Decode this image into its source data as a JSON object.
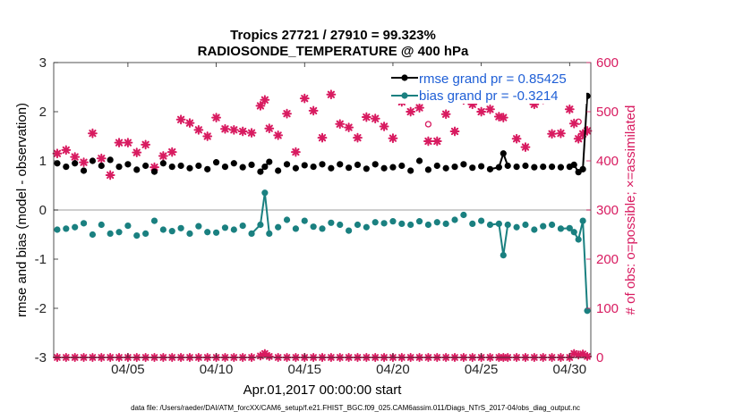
{
  "chart_data": {
    "type": "line",
    "title": "Tropics 27721 / 27910 = 99.323%",
    "subtitle": "RADIOSONDE_TEMPERATURE @ 400 hPa",
    "xlabel": "Apr.01,2017 00:00:00 start",
    "ylabel": "rmse and bias (model - observation)",
    "ylabel_right": "# of obs: o=possible; ×=assimilated",
    "footer": "data file: /Users/raeder/DAI/ATM_forcXX/CAM6_setup/f.e21.FHIST_BGC.f09_025.CAM6assim.011/Diags_NTrS_2017-04/obs_diag_output.nc",
    "xlim": [
      0.8,
      31.2
    ],
    "ylim": [
      -3,
      3
    ],
    "ylim_right": [
      0,
      600
    ],
    "x_ticks": [
      5,
      10,
      15,
      20,
      25,
      30
    ],
    "x_tick_labels": [
      "04/05",
      "04/10",
      "04/15",
      "04/20",
      "04/25",
      "04/30"
    ],
    "y_ticks": [
      -3,
      -2,
      -1,
      0,
      1,
      2,
      3
    ],
    "y_tick_labels": [
      "-3",
      "-2",
      "-1",
      "0",
      "1",
      "2",
      "3"
    ],
    "y_ticks_right": [
      0,
      100,
      200,
      300,
      400,
      500,
      600
    ],
    "y_tick_labels_right": [
      "0",
      "100",
      "200",
      "300",
      "400",
      "500",
      "600"
    ],
    "colors": {
      "rmse": "#000000",
      "bias": "#1a8080",
      "obs": "#d81b60",
      "legend_text": "#1f5fd6",
      "zero_line": "#bdbdbd"
    },
    "legend": [
      "rmse grand pr = 0.85425",
      "bias grand pr = -0.3214"
    ],
    "series": [
      {
        "name": "rmse",
        "x": [
          1.0,
          1.5,
          2.0,
          2.5,
          3.0,
          3.5,
          4.0,
          4.5,
          5.0,
          5.5,
          6.0,
          6.5,
          7.0,
          7.5,
          8.0,
          8.5,
          9.0,
          9.5,
          10.0,
          10.5,
          11.0,
          11.5,
          12.0,
          12.5,
          12.75,
          13.0,
          13.5,
          14.0,
          14.5,
          15.0,
          15.5,
          16.0,
          16.5,
          17.0,
          17.5,
          18.0,
          18.5,
          19.0,
          19.5,
          20.0,
          20.5,
          21.0,
          21.5,
          22.0,
          22.5,
          23.0,
          23.5,
          24.0,
          24.5,
          25.0,
          25.5,
          26.0,
          26.25,
          26.5,
          27.0,
          27.5,
          28.0,
          28.5,
          29.0,
          29.5,
          30.0,
          30.25,
          30.5,
          30.75,
          31.0
        ],
        "values": [
          0.95,
          0.88,
          0.95,
          0.8,
          1.0,
          0.9,
          1.02,
          0.88,
          0.93,
          0.82,
          0.9,
          0.78,
          0.95,
          0.88,
          0.9,
          0.85,
          0.9,
          0.83,
          0.97,
          0.88,
          0.95,
          0.87,
          0.92,
          0.78,
          0.88,
          0.98,
          0.8,
          0.93,
          0.85,
          0.91,
          0.88,
          0.93,
          0.85,
          0.93,
          0.86,
          0.92,
          0.84,
          0.93,
          0.85,
          0.87,
          0.9,
          0.8,
          1.0,
          0.82,
          0.9,
          0.85,
          0.88,
          0.93,
          0.86,
          0.89,
          0.83,
          0.87,
          1.15,
          0.9,
          0.88,
          0.9,
          0.87,
          0.88,
          0.88,
          0.87,
          0.88,
          0.92,
          0.77,
          0.83,
          2.32
        ]
      },
      {
        "name": "bias",
        "x": [
          1.0,
          1.5,
          2.0,
          2.5,
          3.0,
          3.5,
          4.0,
          4.5,
          5.0,
          5.5,
          6.0,
          6.5,
          7.0,
          7.5,
          8.0,
          8.5,
          9.0,
          9.5,
          10.0,
          10.5,
          11.0,
          11.5,
          12.0,
          12.5,
          12.75,
          13.0,
          13.5,
          14.0,
          14.5,
          15.0,
          15.5,
          16.0,
          16.5,
          17.0,
          17.5,
          18.0,
          18.5,
          19.0,
          19.5,
          20.0,
          20.5,
          21.0,
          21.5,
          22.0,
          22.5,
          23.0,
          23.5,
          24.0,
          24.5,
          25.0,
          25.5,
          26.0,
          26.25,
          26.5,
          27.0,
          27.5,
          28.0,
          28.5,
          29.0,
          29.5,
          30.0,
          30.25,
          30.5,
          30.75,
          31.0
        ],
        "values": [
          -0.4,
          -0.38,
          -0.35,
          -0.27,
          -0.5,
          -0.3,
          -0.48,
          -0.45,
          -0.32,
          -0.52,
          -0.48,
          -0.22,
          -0.4,
          -0.43,
          -0.37,
          -0.48,
          -0.33,
          -0.45,
          -0.46,
          -0.36,
          -0.4,
          -0.32,
          -0.48,
          -0.3,
          0.35,
          -0.48,
          -0.35,
          -0.2,
          -0.38,
          -0.22,
          -0.34,
          -0.38,
          -0.26,
          -0.3,
          -0.42,
          -0.3,
          -0.35,
          -0.25,
          -0.27,
          -0.23,
          -0.28,
          -0.3,
          -0.23,
          -0.3,
          -0.25,
          -0.28,
          -0.2,
          -0.1,
          -0.28,
          -0.22,
          -0.3,
          -0.28,
          -0.92,
          -0.3,
          -0.35,
          -0.3,
          -0.4,
          -0.33,
          -0.3,
          -0.38,
          -0.37,
          -0.45,
          -0.6,
          -0.22,
          -2.05
        ]
      },
      {
        "name": "obs assimilated",
        "x": [
          1.0,
          1.5,
          2.0,
          2.5,
          3.0,
          3.5,
          4.0,
          4.5,
          5.0,
          5.5,
          6.0,
          6.5,
          7.0,
          7.5,
          8.0,
          8.5,
          9.0,
          9.5,
          10.0,
          10.5,
          11.0,
          11.5,
          12.0,
          12.5,
          12.75,
          13.0,
          13.5,
          14.0,
          14.5,
          15.0,
          15.5,
          16.0,
          16.5,
          17.0,
          17.5,
          18.0,
          18.5,
          19.0,
          19.5,
          20.0,
          20.5,
          21.0,
          21.5,
          22.0,
          22.5,
          23.0,
          23.5,
          24.0,
          24.5,
          25.0,
          25.5,
          26.0,
          26.25,
          26.5,
          27.0,
          27.5,
          28.0,
          28.5,
          29.0,
          29.5,
          30.0,
          30.25,
          30.5,
          30.75,
          31.0
        ],
        "values": [
          415,
          422,
          408,
          397,
          456,
          405,
          371,
          437,
          437,
          417,
          433,
          387,
          410,
          418,
          484,
          477,
          463,
          450,
          488,
          465,
          463,
          460,
          457,
          512,
          524,
          466,
          452,
          496,
          418,
          527,
          502,
          447,
          535,
          475,
          468,
          447,
          489,
          486,
          470,
          446,
          520,
          500,
          508,
          440,
          440,
          495,
          460,
          524,
          515,
          500,
          505,
          490,
          488,
          530,
          445,
          428,
          515,
          525,
          455,
          456,
          505,
          476,
          445,
          455,
          461
        ]
      },
      {
        "name": "obs possible",
        "x": [
          22.0,
          25.0,
          30.5
        ],
        "values": [
          460,
          515,
          465
        ]
      },
      {
        "name": "obs count bottom",
        "x": [
          1.0,
          1.5,
          2.0,
          2.5,
          3.0,
          3.5,
          4.0,
          4.5,
          5.0,
          5.5,
          6.0,
          6.5,
          7.0,
          7.5,
          8.0,
          8.5,
          9.0,
          9.5,
          10.0,
          10.5,
          11.0,
          11.5,
          12.0,
          12.5,
          12.75,
          13.0,
          13.5,
          14.0,
          14.5,
          15.0,
          15.5,
          16.0,
          16.5,
          17.0,
          17.5,
          18.0,
          18.5,
          19.0,
          19.5,
          20.0,
          20.5,
          21.0,
          21.5,
          22.0,
          22.5,
          23.0,
          23.5,
          24.0,
          24.5,
          25.0,
          25.5,
          26.0,
          26.25,
          26.5,
          27.0,
          27.5,
          28.0,
          28.5,
          29.0,
          29.5,
          30.0,
          30.25,
          30.5,
          30.75,
          31.0
        ],
        "values": [
          0,
          0,
          0,
          0,
          0,
          0,
          0,
          0,
          0,
          0,
          0,
          0,
          0,
          0,
          0,
          0,
          0,
          0,
          0,
          0,
          0,
          0,
          0,
          3,
          8,
          2,
          0,
          0,
          0,
          0,
          0,
          0,
          0,
          0,
          0,
          0,
          0,
          0,
          0,
          0,
          0,
          0,
          0,
          0,
          0,
          0,
          0,
          0,
          0,
          0,
          0,
          0,
          0,
          0,
          0,
          0,
          0,
          0,
          0,
          0,
          0,
          8,
          5,
          7,
          2
        ]
      }
    ]
  }
}
